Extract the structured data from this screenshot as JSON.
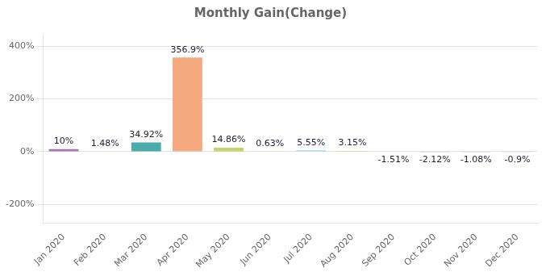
{
  "chart_data": {
    "type": "bar",
    "title": "Monthly Gain(Change)",
    "categories": [
      "Jan 2020",
      "Feb 2020",
      "Mar 2020",
      "Apr 2020",
      "May 2020",
      "Jun 2020",
      "Jul 2020",
      "Aug 2020",
      "Sep 2020",
      "Oct 2020",
      "Nov 2020",
      "Dec 2020"
    ],
    "values": [
      10,
      1.48,
      34.92,
      356.9,
      14.86,
      0.63,
      5.55,
      3.15,
      -1.51,
      -2.12,
      -1.08,
      -0.9
    ],
    "value_labels": [
      "10%",
      "1.48%",
      "34.92%",
      "356.9%",
      "14.86%",
      "0.63%",
      "5.55%",
      "3.15%",
      "-1.51%",
      "-2.12%",
      "-1.08%",
      "-0.9%"
    ],
    "colors": [
      "#a07ab0",
      "#e08888",
      "#4aabaa",
      "#f4a97f",
      "#c5d468",
      "#f0d060",
      "#a8d8ea",
      "#c8d070",
      "#8888cc",
      "#7090cc",
      "#80aacc",
      "#90b8d8"
    ],
    "ylim": [
      -270,
      440
    ],
    "yticks": [
      {
        "value": -200,
        "label": "-200%"
      },
      {
        "value": 0,
        "label": "0%"
      },
      {
        "value": 200,
        "label": "200%"
      },
      {
        "value": 400,
        "label": "400%"
      }
    ],
    "grid": true,
    "data_labels": true
  }
}
